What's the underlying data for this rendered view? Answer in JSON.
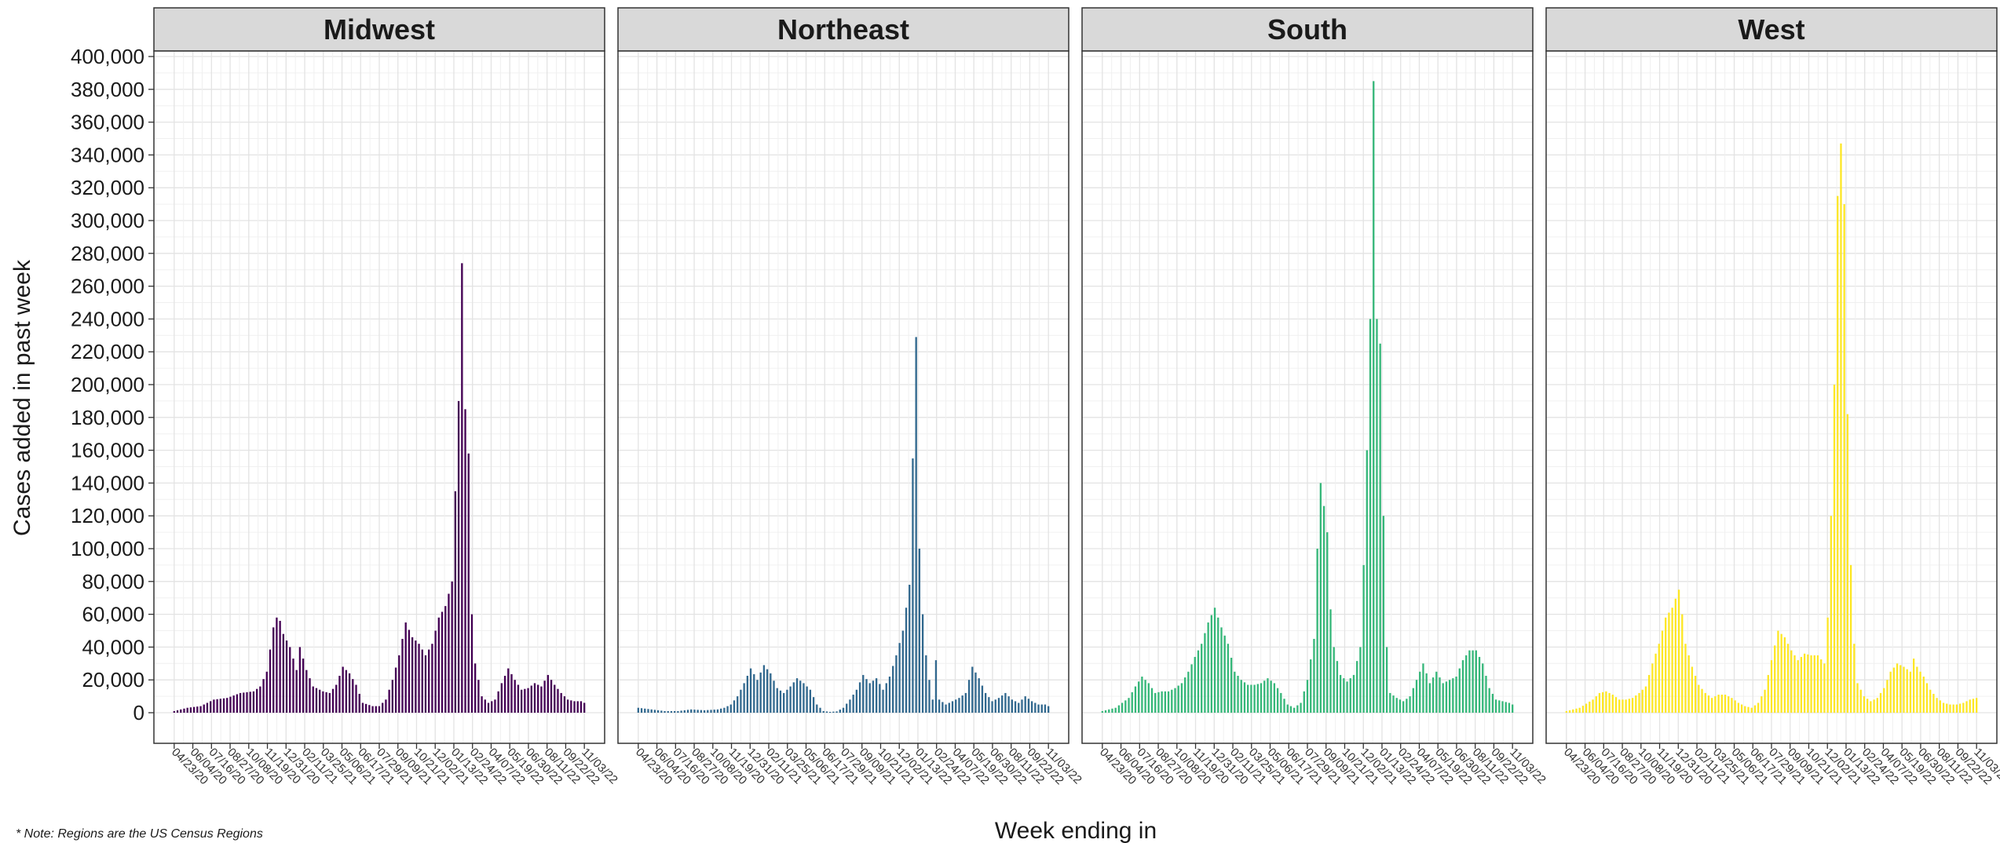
{
  "chart_data": {
    "type": "bar",
    "xlabel": "Week ending in",
    "ylabel": "Cases added in past week",
    "ylim": [
      0,
      400000
    ],
    "y_ticks": [
      "0",
      "20,000",
      "40,000",
      "60,000",
      "80,000",
      "100,000",
      "120,000",
      "140,000",
      "160,000",
      "180,000",
      "200,000",
      "220,000",
      "240,000",
      "260,000",
      "280,000",
      "300,000",
      "320,000",
      "340,000",
      "360,000",
      "380,000",
      "400,000"
    ],
    "x_ticks": [
      "04/23/20",
      "06/04/20",
      "07/16/20",
      "08/27/20",
      "10/08/20",
      "11/19/20",
      "12/31/20",
      "02/11/21",
      "03/25/21",
      "05/06/21",
      "06/17/21",
      "07/29/21",
      "09/09/21",
      "10/21/21",
      "12/02/21",
      "01/13/22",
      "02/24/22",
      "04/07/22",
      "05/19/22",
      "06/30/22",
      "08/11/22",
      "09/22/22",
      "11/03/22"
    ],
    "grid": true,
    "legend": "none",
    "panels": [
      {
        "name": "Midwest",
        "color": "#440154",
        "peaks": [
          [
            0,
            1000
          ],
          [
            4,
            3000
          ],
          [
            8,
            4000
          ],
          [
            12,
            8000
          ],
          [
            16,
            9000
          ],
          [
            20,
            12000
          ],
          [
            24,
            13000
          ],
          [
            26,
            16000
          ],
          [
            28,
            25000
          ],
          [
            30,
            52000
          ],
          [
            31,
            58000
          ],
          [
            32,
            56000
          ],
          [
            33,
            48000
          ],
          [
            35,
            40000
          ],
          [
            37,
            26000
          ],
          [
            38,
            40000
          ],
          [
            40,
            26000
          ],
          [
            42,
            16000
          ],
          [
            45,
            13000
          ],
          [
            47,
            12000
          ],
          [
            49,
            17000
          ],
          [
            51,
            28000
          ],
          [
            53,
            24000
          ],
          [
            55,
            17000
          ],
          [
            57,
            6000
          ],
          [
            60,
            4000
          ],
          [
            62,
            4000
          ],
          [
            64,
            8000
          ],
          [
            66,
            20000
          ],
          [
            68,
            35000
          ],
          [
            70,
            55000
          ],
          [
            72,
            46000
          ],
          [
            74,
            42000
          ],
          [
            76,
            35000
          ],
          [
            78,
            42000
          ],
          [
            80,
            58000
          ],
          [
            82,
            65000
          ],
          [
            84,
            80000
          ],
          [
            85,
            135000
          ],
          [
            86,
            190000
          ],
          [
            87,
            274000
          ],
          [
            88,
            185000
          ],
          [
            89,
            158000
          ],
          [
            90,
            60000
          ],
          [
            91,
            30000
          ],
          [
            93,
            10000
          ],
          [
            95,
            6000
          ],
          [
            97,
            8000
          ],
          [
            99,
            18000
          ],
          [
            101,
            27000
          ],
          [
            103,
            20000
          ],
          [
            105,
            14000
          ],
          [
            107,
            15000
          ],
          [
            109,
            18000
          ],
          [
            111,
            16000
          ],
          [
            113,
            23000
          ],
          [
            115,
            17000
          ],
          [
            117,
            12000
          ],
          [
            119,
            8000
          ],
          [
            121,
            7000
          ],
          [
            123,
            7000
          ],
          [
            124,
            6000
          ]
        ]
      },
      {
        "name": "Northeast",
        "color": "#31688E",
        "peaks": [
          [
            0,
            3000
          ],
          [
            4,
            2000
          ],
          [
            8,
            1000
          ],
          [
            12,
            1000
          ],
          [
            16,
            2000
          ],
          [
            20,
            1500
          ],
          [
            24,
            2000
          ],
          [
            26,
            3000
          ],
          [
            28,
            5000
          ],
          [
            30,
            10000
          ],
          [
            32,
            18000
          ],
          [
            34,
            27000
          ],
          [
            36,
            20000
          ],
          [
            38,
            29000
          ],
          [
            40,
            24000
          ],
          [
            42,
            15000
          ],
          [
            44,
            12000
          ],
          [
            46,
            16000
          ],
          [
            48,
            21000
          ],
          [
            50,
            18000
          ],
          [
            52,
            14000
          ],
          [
            54,
            5000
          ],
          [
            56,
            1000
          ],
          [
            58,
            500
          ],
          [
            60,
            800
          ],
          [
            62,
            3000
          ],
          [
            64,
            8000
          ],
          [
            66,
            14000
          ],
          [
            68,
            23000
          ],
          [
            70,
            18000
          ],
          [
            72,
            21000
          ],
          [
            74,
            14000
          ],
          [
            76,
            22000
          ],
          [
            78,
            35000
          ],
          [
            80,
            50000
          ],
          [
            82,
            78000
          ],
          [
            83,
            155000
          ],
          [
            84,
            229000
          ],
          [
            85,
            100000
          ],
          [
            86,
            60000
          ],
          [
            87,
            35000
          ],
          [
            88,
            20000
          ],
          [
            89,
            8000
          ],
          [
            90,
            32000
          ],
          [
            91,
            8000
          ],
          [
            93,
            5000
          ],
          [
            95,
            7000
          ],
          [
            97,
            9000
          ],
          [
            99,
            12000
          ],
          [
            101,
            28000
          ],
          [
            103,
            21000
          ],
          [
            105,
            12000
          ],
          [
            107,
            7000
          ],
          [
            109,
            9000
          ],
          [
            111,
            12000
          ],
          [
            113,
            8000
          ],
          [
            115,
            6000
          ],
          [
            117,
            10000
          ],
          [
            119,
            7000
          ],
          [
            121,
            5000
          ],
          [
            123,
            5000
          ],
          [
            124,
            4000
          ]
        ]
      },
      {
        "name": "South",
        "color": "#35B779",
        "peaks": [
          [
            0,
            1000
          ],
          [
            4,
            3000
          ],
          [
            8,
            9000
          ],
          [
            10,
            16000
          ],
          [
            12,
            22000
          ],
          [
            14,
            18000
          ],
          [
            16,
            12000
          ],
          [
            18,
            13000
          ],
          [
            20,
            13000
          ],
          [
            22,
            15000
          ],
          [
            24,
            18000
          ],
          [
            26,
            25000
          ],
          [
            28,
            34000
          ],
          [
            30,
            42000
          ],
          [
            32,
            55000
          ],
          [
            34,
            64000
          ],
          [
            36,
            52000
          ],
          [
            38,
            42000
          ],
          [
            40,
            25000
          ],
          [
            42,
            20000
          ],
          [
            44,
            17000
          ],
          [
            46,
            17000
          ],
          [
            48,
            18000
          ],
          [
            50,
            21000
          ],
          [
            52,
            18000
          ],
          [
            54,
            12000
          ],
          [
            56,
            5000
          ],
          [
            58,
            3000
          ],
          [
            60,
            6000
          ],
          [
            62,
            20000
          ],
          [
            64,
            45000
          ],
          [
            65,
            100000
          ],
          [
            66,
            140000
          ],
          [
            67,
            126000
          ],
          [
            68,
            110000
          ],
          [
            69,
            63000
          ],
          [
            70,
            40000
          ],
          [
            72,
            23000
          ],
          [
            74,
            19000
          ],
          [
            76,
            23000
          ],
          [
            78,
            40000
          ],
          [
            79,
            90000
          ],
          [
            80,
            160000
          ],
          [
            81,
            240000
          ],
          [
            82,
            385000
          ],
          [
            83,
            240000
          ],
          [
            84,
            225000
          ],
          [
            85,
            120000
          ],
          [
            86,
            40000
          ],
          [
            87,
            12000
          ],
          [
            89,
            9000
          ],
          [
            91,
            7000
          ],
          [
            93,
            10000
          ],
          [
            95,
            20000
          ],
          [
            97,
            30000
          ],
          [
            99,
            18000
          ],
          [
            101,
            25000
          ],
          [
            103,
            18000
          ],
          [
            105,
            20000
          ],
          [
            107,
            22000
          ],
          [
            109,
            32000
          ],
          [
            111,
            38000
          ],
          [
            113,
            38000
          ],
          [
            115,
            30000
          ],
          [
            117,
            15000
          ],
          [
            119,
            8000
          ],
          [
            121,
            7000
          ],
          [
            123,
            6000
          ],
          [
            124,
            5000
          ]
        ]
      },
      {
        "name": "West",
        "color": "#FDE725",
        "peaks": [
          [
            0,
            1000
          ],
          [
            4,
            3000
          ],
          [
            8,
            8000
          ],
          [
            10,
            12000
          ],
          [
            12,
            13000
          ],
          [
            14,
            11000
          ],
          [
            16,
            8000
          ],
          [
            18,
            8000
          ],
          [
            20,
            9000
          ],
          [
            22,
            12000
          ],
          [
            24,
            16000
          ],
          [
            26,
            30000
          ],
          [
            28,
            42000
          ],
          [
            30,
            58000
          ],
          [
            32,
            64000
          ],
          [
            34,
            75000
          ],
          [
            35,
            60000
          ],
          [
            36,
            42000
          ],
          [
            38,
            28000
          ],
          [
            40,
            17000
          ],
          [
            42,
            12000
          ],
          [
            44,
            9000
          ],
          [
            46,
            11000
          ],
          [
            48,
            11000
          ],
          [
            50,
            9000
          ],
          [
            52,
            6000
          ],
          [
            54,
            4000
          ],
          [
            56,
            3000
          ],
          [
            58,
            6000
          ],
          [
            60,
            14000
          ],
          [
            62,
            32000
          ],
          [
            64,
            50000
          ],
          [
            66,
            46000
          ],
          [
            68,
            38000
          ],
          [
            70,
            32000
          ],
          [
            72,
            36000
          ],
          [
            74,
            35000
          ],
          [
            76,
            35000
          ],
          [
            78,
            30000
          ],
          [
            79,
            58000
          ],
          [
            80,
            120000
          ],
          [
            81,
            200000
          ],
          [
            82,
            315000
          ],
          [
            83,
            347000
          ],
          [
            84,
            310000
          ],
          [
            85,
            182000
          ],
          [
            86,
            90000
          ],
          [
            87,
            42000
          ],
          [
            88,
            18000
          ],
          [
            90,
            10000
          ],
          [
            92,
            7000
          ],
          [
            94,
            9000
          ],
          [
            96,
            15000
          ],
          [
            98,
            25000
          ],
          [
            100,
            30000
          ],
          [
            102,
            28000
          ],
          [
            104,
            25000
          ],
          [
            105,
            33000
          ],
          [
            106,
            28000
          ],
          [
            108,
            22000
          ],
          [
            110,
            14000
          ],
          [
            112,
            9000
          ],
          [
            114,
            6000
          ],
          [
            116,
            5000
          ],
          [
            118,
            5000
          ],
          [
            120,
            6000
          ],
          [
            122,
            8000
          ],
          [
            124,
            9000
          ]
        ]
      }
    ]
  },
  "note": "* Note: Regions are the US Census Regions"
}
